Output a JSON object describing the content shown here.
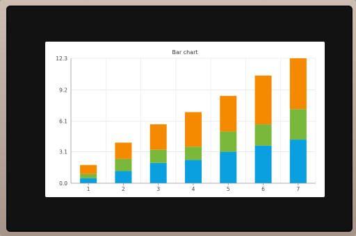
{
  "chart_data": {
    "type": "bar",
    "stacked": true,
    "title": "Bar chart",
    "categories": [
      "1",
      "2",
      "3",
      "4",
      "5",
      "6",
      "7"
    ],
    "series": [
      {
        "color": "#0aa0e0",
        "values": [
          0.5,
          1.2,
          2.0,
          2.3,
          3.1,
          3.7,
          4.3
        ]
      },
      {
        "color": "#7ab83c",
        "values": [
          0.4,
          1.2,
          1.3,
          1.3,
          2.0,
          2.1,
          3.0
        ]
      },
      {
        "color": "#f58a00",
        "values": [
          0.9,
          1.6,
          2.5,
          3.4,
          3.5,
          4.8,
          5.0
        ]
      }
    ],
    "ylim": [
      0,
      12.3
    ],
    "yticks": [
      "0.0",
      "3.1",
      "6.1",
      "9.2",
      "12.3"
    ],
    "ytick_values": [
      0,
      3.1,
      6.1,
      9.2,
      12.3
    ],
    "grid": true
  }
}
